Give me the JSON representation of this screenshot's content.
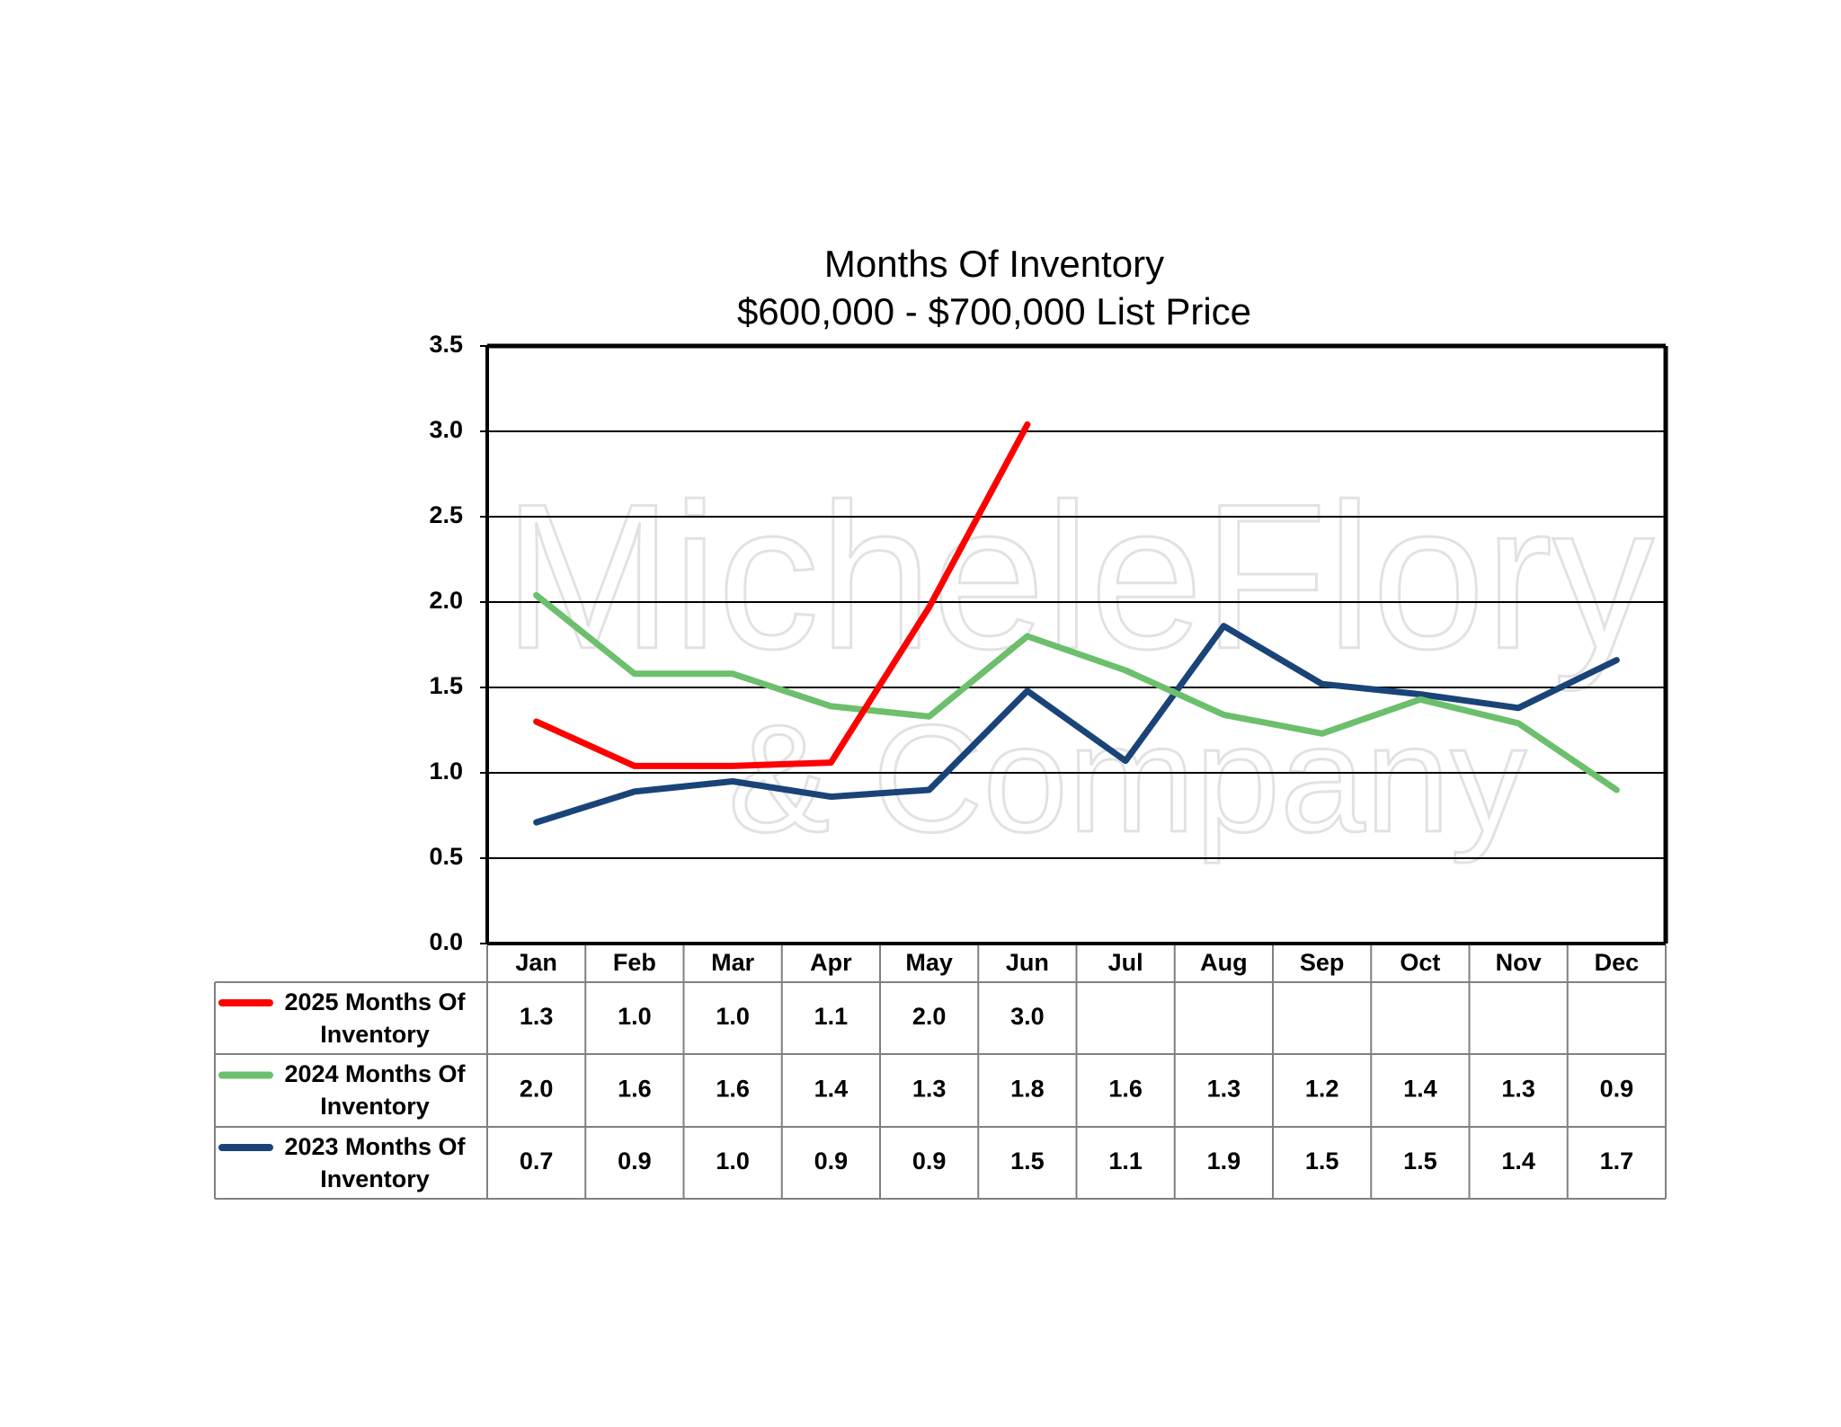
{
  "chart_data": {
    "type": "line",
    "title": "Months Of Inventory",
    "subtitle": "$600,000 - $700,000 List Price",
    "watermark": [
      "MicheleFlory",
      "& Company"
    ],
    "categories": [
      "Jan",
      "Feb",
      "Mar",
      "Apr",
      "May",
      "Jun",
      "Jul",
      "Aug",
      "Sep",
      "Oct",
      "Nov",
      "Dec"
    ],
    "series": [
      {
        "name": "2025 Months Of Inventory",
        "color": "#ff0000",
        "values": [
          1.3,
          1.04,
          1.04,
          1.06,
          1.97,
          3.04,
          null,
          null,
          null,
          null,
          null,
          null
        ],
        "value_labels": [
          "1.3",
          "1.0",
          "1.0",
          "1.1",
          "2.0",
          "3.0",
          null,
          null,
          null,
          null,
          null,
          null
        ]
      },
      {
        "name": "2024 Months Of Inventory",
        "color": "#6cbf6c",
        "values": [
          2.04,
          1.58,
          1.58,
          1.39,
          1.33,
          1.8,
          1.6,
          1.34,
          1.23,
          1.43,
          1.29,
          0.9
        ],
        "value_labels": [
          "2.0",
          "1.6",
          "1.6",
          "1.4",
          "1.3",
          "1.8",
          "1.6",
          "1.3",
          "1.2",
          "1.4",
          "1.3",
          "0.9"
        ]
      },
      {
        "name": "2023 Months Of Inventory",
        "color": "#1a4478",
        "values": [
          0.71,
          0.89,
          0.95,
          0.86,
          0.9,
          1.48,
          1.07,
          1.86,
          1.52,
          1.46,
          1.38,
          1.66
        ],
        "value_labels": [
          "0.7",
          "0.9",
          "1.0",
          "0.9",
          "0.9",
          "1.5",
          "1.1",
          "1.9",
          "1.5",
          "1.5",
          "1.4",
          "1.7"
        ]
      }
    ],
    "ylim": [
      0,
      3.5
    ],
    "yticks": [
      {
        "value": 0,
        "label": "0.0"
      },
      {
        "value": 0.5,
        "label": "0.5"
      },
      {
        "value": 1,
        "label": "1.0"
      },
      {
        "value": 1.5,
        "label": "1.5"
      },
      {
        "value": 2,
        "label": "2.0"
      },
      {
        "value": 2.5,
        "label": "2.5"
      },
      {
        "value": 3,
        "label": "3.0"
      },
      {
        "value": 3.5,
        "label": "3.5"
      }
    ],
    "grid": true
  }
}
